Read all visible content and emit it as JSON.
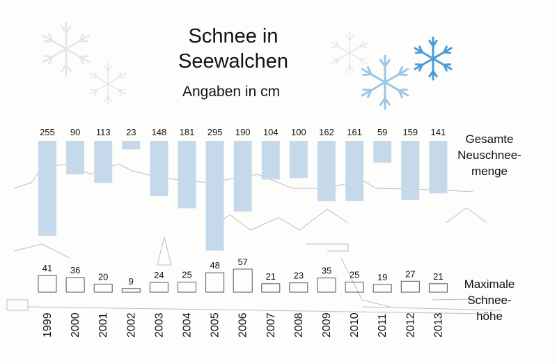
{
  "title_line1": "Schnee in",
  "title_line2": "Seewalchen",
  "subtitle": "Angaben in cm",
  "label_total": [
    "Gesamte",
    "Neuschnee-",
    "menge"
  ],
  "label_max": [
    "Maximale",
    "Schnee-",
    "höhe"
  ],
  "colors": {
    "total_bar": "#c6d9ea",
    "max_box_stroke": "#555555",
    "snowflake_blue": "#4a9bd8",
    "snowflake_light": "#dfe6ee",
    "background_drawing": "#b8b8b8"
  },
  "icons": [
    "snowflake-icon",
    "snowflake-icon",
    "snowflake-icon",
    "snowflake-icon",
    "snowflake-icon"
  ],
  "chart_data": {
    "type": "bar",
    "categories": [
      "1999",
      "2000",
      "2001",
      "2002",
      "2003",
      "2004",
      "2005",
      "2006",
      "2007",
      "2008",
      "2009",
      "2010",
      "2011",
      "2012",
      "2013"
    ],
    "series": [
      {
        "name": "Gesamte Neuschneemenge",
        "values": [
          255,
          90,
          113,
          23,
          148,
          181,
          295,
          190,
          104,
          100,
          162,
          161,
          59,
          159,
          141
        ]
      },
      {
        "name": "Maximale Schneehöhe",
        "values": [
          41,
          36,
          20,
          9,
          24,
          25,
          48,
          57,
          21,
          23,
          35,
          25,
          19,
          27,
          21
        ]
      }
    ],
    "title": "Schnee in Seewalchen",
    "subtitle": "Angaben in cm",
    "grid": false,
    "legend": "right"
  }
}
